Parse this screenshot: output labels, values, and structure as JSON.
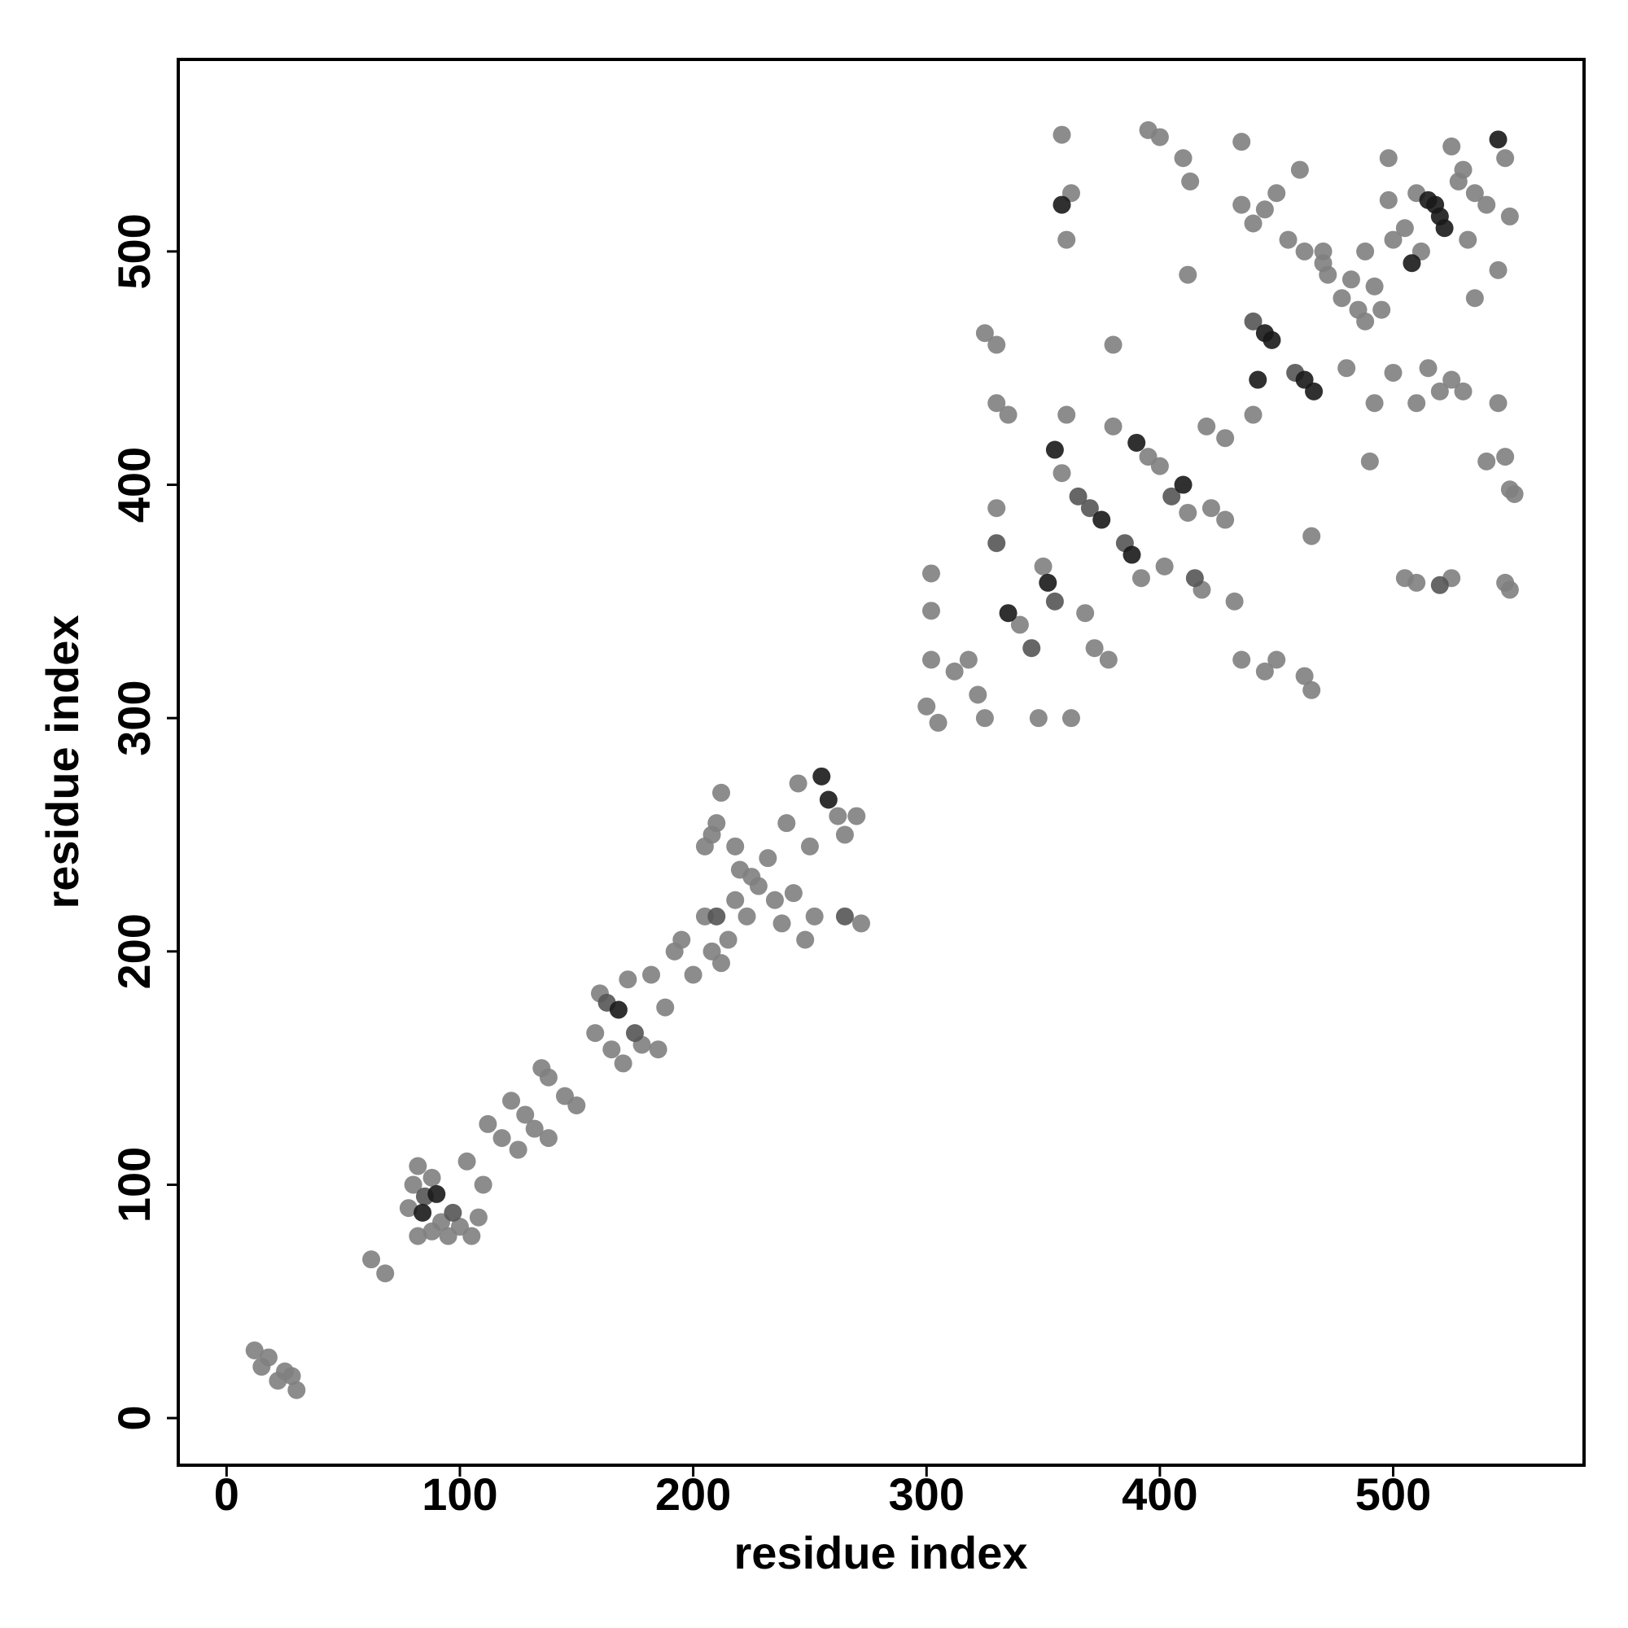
{
  "chart_data": {
    "type": "scatter",
    "xlabel": "residue index",
    "ylabel": "residue index",
    "xlim": [
      -20.7,
      581.8
    ],
    "ylim": [
      -20.2,
      582.3
    ],
    "xticks": [
      0,
      100,
      200,
      300,
      400,
      500
    ],
    "yticks": [
      0,
      100,
      200,
      300,
      400,
      500
    ],
    "series": [
      {
        "color": "#808080",
        "x": [
          12,
          15,
          18,
          22,
          25,
          28,
          30,
          62,
          68,
          78,
          80,
          82,
          88,
          92,
          95,
          100,
          103,
          105,
          108,
          110,
          82,
          88,
          112,
          118,
          122,
          125,
          128,
          132,
          135,
          138,
          138,
          145,
          150,
          158,
          160,
          165,
          170,
          172,
          178,
          182,
          185,
          188,
          192,
          195,
          200,
          205,
          208,
          212,
          215,
          218,
          220,
          223,
          210,
          212,
          218,
          225,
          228,
          232,
          235,
          238,
          240,
          243,
          245,
          248,
          250,
          252,
          262,
          265,
          270,
          272,
          208,
          205,
          300,
          302,
          305,
          302,
          302,
          312,
          318,
          322,
          325,
          325,
          330,
          330,
          335,
          330,
          340,
          348,
          350,
          358,
          360,
          360,
          362,
          368,
          372,
          378,
          380,
          380,
          392,
          395,
          400,
          402,
          412,
          418,
          420,
          422,
          428,
          432,
          435,
          450,
          462,
          465,
          470,
          472,
          358,
          362,
          395,
          400,
          410,
          413,
          412,
          435,
          435,
          440,
          445,
          450,
          455,
          460,
          462,
          470,
          478,
          482,
          485,
          488,
          492,
          495,
          498,
          500,
          505,
          510,
          512,
          525,
          528,
          530,
          532,
          535,
          540,
          548,
          550,
          545,
          535,
          520,
          515,
          510,
          525,
          530,
          540,
          548,
          550,
          552,
          545,
          548,
          550,
          525,
          505,
          510,
          490,
          492,
          500,
          488,
          498,
          465,
          480,
          445,
          428,
          440
        ],
        "y": [
          29,
          22,
          26,
          16,
          20,
          18,
          12,
          68,
          62,
          90,
          100,
          108,
          103,
          84,
          78,
          82,
          110,
          78,
          86,
          100,
          78,
          80,
          126,
          120,
          136,
          115,
          130,
          124,
          150,
          146,
          120,
          138,
          134,
          165,
          182,
          158,
          152,
          188,
          160,
          190,
          158,
          176,
          200,
          205,
          190,
          215,
          200,
          195,
          205,
          222,
          235,
          215,
          255,
          268,
          245,
          232,
          228,
          240,
          222,
          212,
          255,
          225,
          272,
          205,
          245,
          215,
          258,
          250,
          258,
          212,
          250,
          245,
          305,
          325,
          298,
          362,
          346,
          320,
          325,
          310,
          300,
          465,
          460,
          435,
          430,
          390,
          340,
          300,
          365,
          405,
          430,
          505,
          300,
          345,
          330,
          325,
          460,
          425,
          360,
          412,
          408,
          365,
          388,
          355,
          425,
          390,
          385,
          350,
          325,
          325,
          318,
          312,
          500,
          490,
          550,
          525,
          552,
          549,
          540,
          530,
          490,
          547,
          520,
          512,
          518,
          525,
          505,
          535,
          500,
          495,
          480,
          488,
          475,
          470,
          485,
          475,
          540,
          505,
          510,
          525,
          500,
          545,
          530,
          535,
          505,
          525,
          520,
          540,
          515,
          492,
          480,
          440,
          450,
          435,
          445,
          440,
          410,
          412,
          398,
          396,
          435,
          358,
          355,
          360,
          360,
          358,
          410,
          435,
          448,
          500,
          522,
          378,
          450,
          320,
          420,
          430
        ]
      },
      {
        "color": "#555555",
        "x": [
          85,
          97,
          163,
          175,
          210,
          265,
          330,
          345,
          355,
          365,
          370,
          385,
          405,
          415,
          440,
          458,
          520
        ],
        "y": [
          95,
          88,
          178,
          165,
          215,
          215,
          375,
          330,
          350,
          395,
          390,
          375,
          395,
          360,
          470,
          448,
          357
        ]
      },
      {
        "color": "#1a1a1a",
        "x": [
          84,
          90,
          168,
          255,
          258,
          335,
          352,
          355,
          358,
          375,
          388,
          390,
          410,
          442,
          445,
          448,
          462,
          466,
          508,
          515,
          518,
          520,
          522,
          545
        ],
        "y": [
          88,
          96,
          175,
          275,
          265,
          345,
          358,
          415,
          520,
          385,
          370,
          418,
          400,
          445,
          465,
          462,
          445,
          440,
          495,
          522,
          520,
          515,
          510,
          548
        ]
      }
    ]
  }
}
